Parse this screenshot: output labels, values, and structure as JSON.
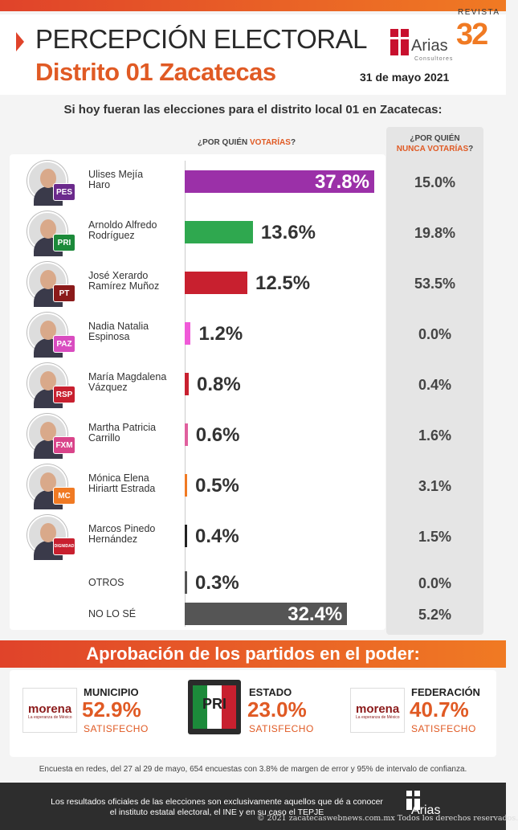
{
  "header": {
    "title_line1": "PERCEPCIÓN ELECTORAL",
    "title_line2": "Distrito 01 Zacatecas",
    "date": "31 de mayo 2021",
    "arias_logo": {
      "word": "Arias",
      "sub": "Consultores"
    },
    "revista_logo": {
      "word": "REVISTA",
      "number": "32"
    }
  },
  "question": "Si hoy fueran las elecciones para el distrito local 01 en Zacatecas:",
  "columns": {
    "vote_prefix": "¿POR QUIÉN ",
    "vote_highlight": "VOTARÍAS",
    "vote_suffix": "?",
    "never_line1": "¿POR QUIÉN",
    "never_highlight": "NUNCA VOTARÍAS",
    "never_suffix": "?"
  },
  "colors": {
    "accent_orange": "#e05a24",
    "accent_red": "#e0432a"
  },
  "chart_data": {
    "type": "bar",
    "orientation": "horizontal",
    "title": "",
    "xlabel": "",
    "ylabel": "",
    "xlim": [
      0,
      40
    ],
    "categories": [
      "Ulises Mejía Haro",
      "Arnoldo Alfredo Rodríguez",
      "José Xerardo Ramírez Muñoz",
      "Nadia Natalia Espinosa",
      "María Magdalena Vázquez",
      "Martha Patricia Carrillo",
      "Mónica Elena Hiriartt Estrada",
      "Marcos Pinedo Hernández",
      "OTROS",
      "NO LO SÉ"
    ],
    "rows": [
      {
        "name_line1": "Ulises Mejía",
        "name_line2": "Haro",
        "vote": 37.8,
        "vote_label": "37.8%",
        "never": "15.0%",
        "color": "#9b30a8",
        "party": "PES",
        "party_color": "#6b2a8c"
      },
      {
        "name_line1": "Arnoldo Alfredo",
        "name_line2": "Rodríguez",
        "vote": 13.6,
        "vote_label": "13.6%",
        "never": "19.8%",
        "color": "#2fa84f",
        "party": "PRI",
        "party_color": "#1c8a3a"
      },
      {
        "name_line1": "José Xerardo",
        "name_line2": "Ramírez Muñoz",
        "vote": 12.5,
        "vote_label": "12.5%",
        "never": "53.5%",
        "color": "#c8202f",
        "party": "PT",
        "party_color": "#8b1a1a"
      },
      {
        "name_line1": "Nadia Natalia",
        "name_line2": "Espinosa",
        "vote": 1.2,
        "vote_label": "1.2%",
        "never": "0.0%",
        "color": "#f05ad8",
        "party": "PAZ",
        "party_color": "#d94cc0"
      },
      {
        "name_line1": "María Magdalena",
        "name_line2": "Vázquez",
        "vote": 0.8,
        "vote_label": "0.8%",
        "never": "0.4%",
        "color": "#c8202f",
        "party": "RSP",
        "party_color": "#c8202f"
      },
      {
        "name_line1": "Martha Patricia",
        "name_line2": "Carrillo",
        "vote": 0.6,
        "vote_label": "0.6%",
        "never": "1.6%",
        "color": "#e0609e",
        "party": "FXM",
        "party_color": "#d9448a"
      },
      {
        "name_line1": "Mónica Elena",
        "name_line2": "Hiriartt Estrada",
        "vote": 0.5,
        "vote_label": "0.5%",
        "never": "3.1%",
        "color": "#f07a23",
        "party": "MC",
        "party_color": "#f07a23"
      },
      {
        "name_line1": "Marcos Pinedo",
        "name_line2": "Hernández",
        "vote": 0.4,
        "vote_label": "0.4%",
        "never": "1.5%",
        "color": "#222222",
        "party": "DIGNIDAD",
        "party_color": "#c8202f"
      },
      {
        "name_line1": "OTROS",
        "name_line2": "",
        "vote": 0.3,
        "vote_label": "0.3%",
        "never": "0.0%",
        "color": "#555555"
      },
      {
        "name_line1": "NO LO SÉ",
        "name_line2": "",
        "vote": 32.4,
        "vote_label": "32.4%",
        "never": "5.2%",
        "color": "#555555"
      }
    ]
  },
  "approval": {
    "title": "Aprobación de los partidos en el poder:",
    "items": [
      {
        "level": "MUNICIPIO",
        "value": "52.9%",
        "label": "SATISFECHO",
        "logo": "morena",
        "logo_word": "morena",
        "logo_sub": "La esperanza de México"
      },
      {
        "level": "ESTADO",
        "value": "23.0%",
        "label": "SATISFECHO",
        "logo": "pri",
        "logo_word": "PRI"
      },
      {
        "level": "FEDERACIÓN",
        "value": "40.7%",
        "label": "SATISFECHO",
        "logo": "morena",
        "logo_word": "morena",
        "logo_sub": "La esperanza de México"
      }
    ]
  },
  "methodology": "Encuesta en redes, del 27 al 29 de mayo, 654 encuestas con 3.8% de margen de error y 95% de intervalo de confianza.",
  "footer": {
    "line1": "Los resultados oficiales de las elecciones son exclusivamente aquellos que dé a conocer",
    "line2": "el instituto estatal electoral, el INE y en su caso el TEPJE",
    "logo_word": "Arias",
    "copyright": "© 2021 zacatecaswebnews.com.mx Todos los derechos reservados."
  }
}
